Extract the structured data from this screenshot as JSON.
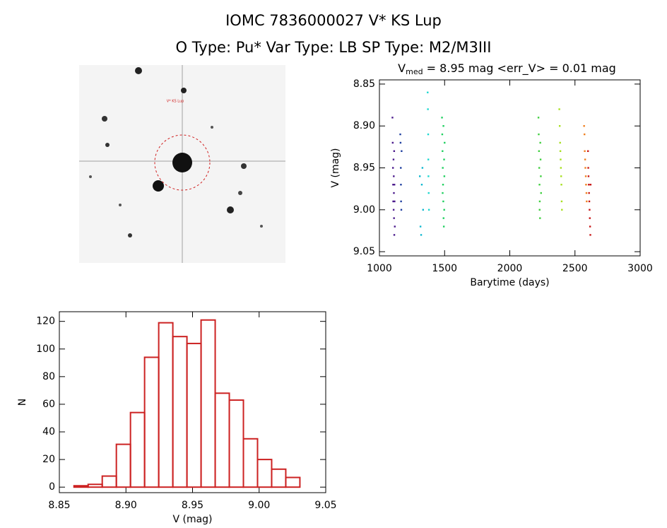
{
  "header": {
    "title": "IOMC 7836000027   V* KS Lup",
    "subtitle": "O Type: Pu*  Var Type: LB  SP Type: M2/M3III",
    "image_label": "V* KS Lup"
  },
  "chart_data": [
    {
      "type": "scatter",
      "title": {
        "main": "V",
        "sub": "med",
        "rest": " = 8.95 mag <err_V> = 0.01 mag"
      },
      "xlabel": "Barytime (days)",
      "ylabel": "V (mag)",
      "xlim": [
        1000,
        3000
      ],
      "xticks": [
        1000,
        1500,
        2000,
        2500,
        3000
      ],
      "ylim": [
        9.055,
        8.845
      ],
      "yticks": [
        {
          "value": 8.85,
          "label": "8.85"
        },
        {
          "value": 8.9,
          "label": "8.90"
        },
        {
          "value": 8.95,
          "label": "8.95"
        },
        {
          "value": 9.0,
          "label": "9.00"
        },
        {
          "value": 9.05,
          "label": "9.05"
        }
      ],
      "series": [
        {
          "color": "#4b1a8c",
          "x": [
            1100,
            1102,
            1104,
            1105,
            1106,
            1108,
            1109,
            1110,
            1111,
            1112,
            1113,
            1114,
            1115,
            1116,
            1118
          ],
          "values": [
            8.89,
            8.92,
            8.95,
            8.97,
            8.99,
            8.94,
            9.0,
            8.96,
            8.98,
            9.01,
            8.93,
            9.03,
            8.97,
            8.99,
            9.02
          ]
        },
        {
          "color": "#1f3f9f",
          "x": [
            1160,
            1162,
            1164,
            1165,
            1166,
            1168,
            1170
          ],
          "values": [
            8.91,
            8.92,
            8.95,
            8.97,
            8.99,
            9.0,
            8.93
          ]
        },
        {
          "color": "#10b8d0",
          "x": [
            1310,
            1315,
            1320,
            1325,
            1330,
            1335
          ],
          "values": [
            8.96,
            9.02,
            9.03,
            8.97,
            8.95,
            9.0
          ]
        },
        {
          "color": "#20d8d0",
          "x": [
            1370,
            1372,
            1374,
            1375,
            1376,
            1378,
            1380
          ],
          "values": [
            8.86,
            8.88,
            8.91,
            8.94,
            8.96,
            8.98,
            9.0
          ]
        },
        {
          "color": "#20d060",
          "x": [
            1480,
            1482,
            1484,
            1486,
            1488,
            1490,
            1492,
            1494,
            1496,
            1498,
            1500,
            1485,
            1491,
            1497
          ],
          "values": [
            8.89,
            8.91,
            8.93,
            8.95,
            8.97,
            8.99,
            9.01,
            9.02,
            8.94,
            8.96,
            8.92,
            8.98,
            8.9,
            9.0
          ]
        },
        {
          "color": "#40d040",
          "x": [
            2220,
            2222,
            2224,
            2226,
            2228,
            2230,
            2232,
            2234,
            2236,
            2238,
            2240,
            2229
          ],
          "values": [
            8.89,
            8.91,
            8.93,
            8.95,
            8.97,
            8.99,
            9.01,
            8.92,
            8.94,
            8.96,
            8.98,
            9.0
          ]
        },
        {
          "color": "#a8e020",
          "x": [
            2380,
            2383,
            2386,
            2388,
            2390,
            2392,
            2394,
            2396,
            2398,
            2400
          ],
          "values": [
            8.88,
            8.9,
            8.92,
            8.93,
            8.94,
            8.95,
            8.96,
            8.97,
            8.99,
            9.0
          ]
        },
        {
          "color": "#f08020",
          "x": [
            2570,
            2573,
            2575,
            2578,
            2580,
            2583,
            2585,
            2588,
            2590
          ],
          "values": [
            8.9,
            8.91,
            8.93,
            8.94,
            8.95,
            8.96,
            8.97,
            8.98,
            8.99
          ]
        },
        {
          "color": "#c81818",
          "x": [
            2600,
            2602,
            2604,
            2606,
            2608,
            2610,
            2612,
            2614,
            2616,
            2618,
            2620
          ],
          "values": [
            8.93,
            8.95,
            8.96,
            8.97,
            8.98,
            8.99,
            9.0,
            9.01,
            9.02,
            9.03,
            8.97
          ]
        }
      ]
    },
    {
      "type": "histogram",
      "xlabel": "V (mag)",
      "ylabel": "N",
      "color": "#cc2222",
      "xlim": [
        8.85,
        9.05
      ],
      "xticks": [
        {
          "value": 8.85,
          "label": "8.85"
        },
        {
          "value": 8.9,
          "label": "8.90"
        },
        {
          "value": 8.95,
          "label": "8.95"
        },
        {
          "value": 9.0,
          "label": "9.00"
        },
        {
          "value": 9.05,
          "label": "9.05"
        }
      ],
      "ylim": [
        -4,
        127
      ],
      "yticks": [
        0,
        20,
        40,
        60,
        80,
        100,
        120
      ],
      "bins": [
        8.861,
        8.8716,
        8.8822,
        8.8928,
        8.9034,
        8.914,
        8.9246,
        8.9352,
        8.9458,
        8.9564,
        8.967,
        8.9776,
        8.9882,
        8.9988,
        9.0094,
        9.02,
        9.0306
      ],
      "values": [
        1,
        2,
        8,
        31,
        54,
        94,
        119,
        109,
        104,
        121,
        68,
        63,
        35,
        20,
        13,
        7
      ]
    }
  ]
}
